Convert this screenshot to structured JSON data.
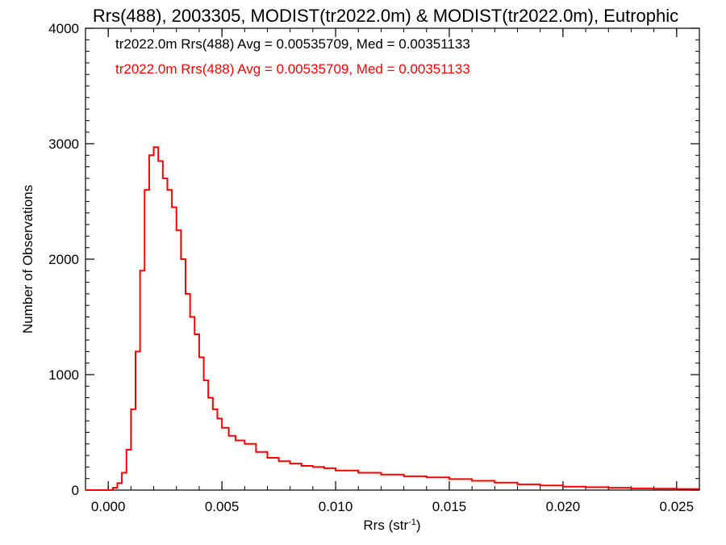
{
  "chart_data": {
    "type": "line",
    "title": "Rrs(488), 2003305, MODIST(tr2022.0m) & MODIST(tr2022.0m), Eutrophic",
    "xlabel": "Rrs (str",
    "xlabel_sup": "-1",
    "xlabel_close": ")",
    "ylabel": "Number of Observations",
    "xlim": [
      -0.001,
      0.026
    ],
    "ylim": [
      0,
      4000
    ],
    "xticks": [
      0.0,
      0.005,
      0.01,
      0.015,
      0.02,
      0.025
    ],
    "xtick_labels": [
      "0.000",
      "0.005",
      "0.010",
      "0.015",
      "0.020",
      "0.025"
    ],
    "yticks": [
      0,
      1000,
      2000,
      3000,
      4000
    ],
    "ytick_labels": [
      "0",
      "1000",
      "2000",
      "3000",
      "4000"
    ],
    "grid": false,
    "legend_position": "top-left",
    "series": [
      {
        "name": "tr2022.0m Rrs(488) Avg = 0.00535709, Med = 0.00351133",
        "color": "#000000"
      },
      {
        "name": "tr2022.0m Rrs(488) Avg = 0.00535709, Med = 0.00351133",
        "color": "#ff0000",
        "x": [
          -0.001,
          0.0,
          0.0002,
          0.0004,
          0.0006,
          0.0008,
          0.001,
          0.0012,
          0.0014,
          0.0016,
          0.0018,
          0.002,
          0.0022,
          0.0024,
          0.0026,
          0.0028,
          0.003,
          0.0032,
          0.0034,
          0.0036,
          0.0038,
          0.004,
          0.0042,
          0.0044,
          0.0046,
          0.0048,
          0.005,
          0.0053,
          0.0056,
          0.006,
          0.0065,
          0.007,
          0.0075,
          0.008,
          0.0085,
          0.009,
          0.0095,
          0.01,
          0.011,
          0.012,
          0.013,
          0.014,
          0.015,
          0.016,
          0.017,
          0.018,
          0.019,
          0.02,
          0.021,
          0.022,
          0.023,
          0.024,
          0.025,
          0.026
        ],
        "y": [
          0,
          0,
          20,
          60,
          150,
          350,
          700,
          1200,
          1900,
          2600,
          2900,
          2970,
          2850,
          2700,
          2600,
          2450,
          2250,
          2000,
          1700,
          1500,
          1350,
          1150,
          950,
          800,
          700,
          620,
          540,
          470,
          430,
          400,
          330,
          280,
          250,
          230,
          210,
          200,
          190,
          170,
          150,
          135,
          120,
          110,
          95,
          80,
          65,
          50,
          40,
          30,
          25,
          20,
          15,
          12,
          10,
          8
        ]
      }
    ]
  }
}
